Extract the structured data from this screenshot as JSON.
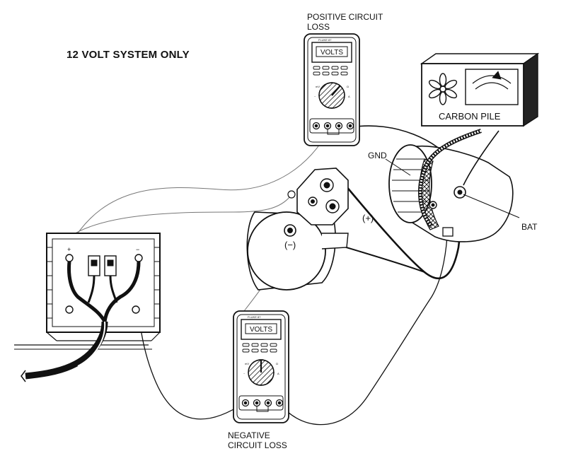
{
  "title": "12 VOLT SYSTEM ONLY",
  "labels": {
    "positive_loss_line1": "POSITIVE CIRCUIT",
    "positive_loss_line2": "LOSS",
    "negative_loss_line1": "NEGATIVE",
    "negative_loss_line2": "CIRCUIT LOSS",
    "carbon_pile": "CARBON PILE",
    "gnd": "GND",
    "bat": "BAT",
    "positive_sign": "(+)",
    "negative_sign": "(−)"
  },
  "meters": {
    "top": {
      "display": "VOLTS",
      "brand": "FLUKE 87"
    },
    "bottom": {
      "display": "VOLTS",
      "brand": "FLUKE 87"
    }
  },
  "icons": [
    "multimeter-icon",
    "fan-icon",
    "gauge-icon",
    "starter-motor",
    "alternator",
    "battery-box"
  ]
}
